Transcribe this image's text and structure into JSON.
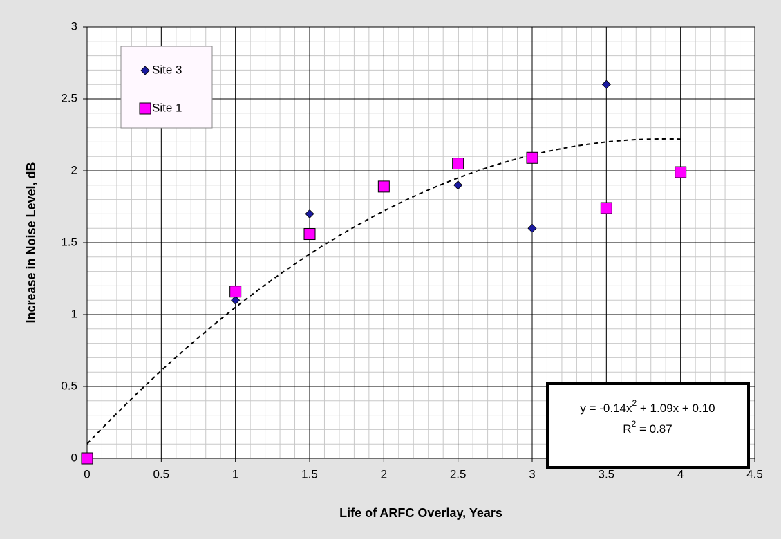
{
  "chart_data": {
    "type": "scatter",
    "x_label": "Life of ARFC Overlay, Years",
    "y_label": "Increase in Noise Level, dB",
    "xlim": [
      0,
      4.5
    ],
    "xticks": [
      0,
      0.5,
      1,
      1.5,
      2,
      2.5,
      3,
      3.5,
      4,
      4.5
    ],
    "ylim": [
      0,
      3
    ],
    "yticks": [
      0,
      0.5,
      1,
      1.5,
      2,
      2.5,
      3
    ],
    "grid": true,
    "minor_grid": true,
    "legend": "top-left",
    "series": [
      {
        "name": "Site 3",
        "marker": "diamond",
        "color": "#1a1aa0",
        "x": [
          1,
          1.5,
          2.5,
          3,
          3.5
        ],
        "values": [
          1.1,
          1.7,
          1.9,
          1.6,
          2.6
        ]
      },
      {
        "name": "Site 1",
        "marker": "square",
        "color": "#ff00ff",
        "x": [
          0,
          1,
          1.5,
          2,
          2.5,
          3,
          3.5,
          4
        ],
        "values": [
          0,
          1.16,
          1.56,
          1.89,
          2.05,
          2.09,
          1.74,
          1.99
        ]
      }
    ],
    "trendline": {
      "coefficients": [
        -0.14,
        1.09,
        0.1
      ],
      "xrange": [
        0,
        4
      ],
      "equation": [
        "y = -0.14x",
        "2",
        " + 1.09x + 0.10"
      ],
      "r2": [
        "R",
        "2",
        " = 0.87"
      ]
    }
  }
}
